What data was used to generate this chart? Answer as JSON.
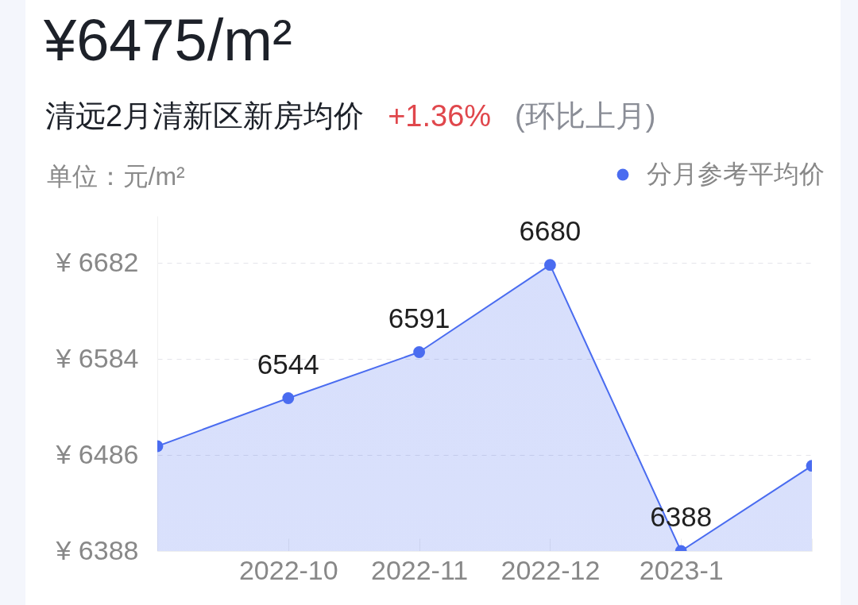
{
  "chart_data": {
    "type": "area",
    "title": "¥6475/m²",
    "subtitle": "清远2月清新区新房均价 +1.36% (环比上月)",
    "ylabel": "单位：元/m²",
    "categories": [
      null,
      "2022-10",
      "2022-11",
      "2022-12",
      "2023-1",
      null
    ],
    "series": [
      {
        "name": "分月参考平均价",
        "color": "#4a6cf0",
        "values": [
          6495,
          6544,
          6591,
          6680,
          6388,
          6475
        ],
        "value_labels": [
          null,
          "6544",
          "6591",
          "6680",
          "6388",
          null
        ]
      }
    ],
    "ylim": [
      6388,
      6730
    ],
    "yticks": [
      {
        "value": 6388,
        "label": "¥ 6388"
      },
      {
        "value": 6486,
        "label": "¥ 6486"
      },
      {
        "value": 6584,
        "label": "¥ 6584"
      },
      {
        "value": 6682,
        "label": "¥ 6682"
      }
    ],
    "grid": "y",
    "legend": "top right",
    "marker": "circle"
  }
}
